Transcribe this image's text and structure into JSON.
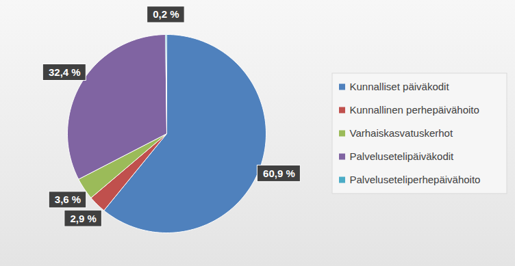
{
  "chart_data": {
    "type": "pie",
    "categories": [
      "Kunnalliset päiväkodit",
      "Kunnallinen perhepäivähoito",
      "Varhaiskasvatuskerhot",
      "Palvelusetelipäiväkodit",
      "Palveluseteliperhepäivähoito"
    ],
    "values": [
      60.9,
      2.9,
      3.6,
      32.4,
      0.2
    ],
    "value_labels": [
      "60,9 %",
      "2,9 %",
      "3,6 %",
      "32,4 %",
      "0,2 %"
    ],
    "colors": [
      "#4f81bd",
      "#c0504d",
      "#9bbb59",
      "#8064a2",
      "#4bacc6"
    ],
    "data_labels": true,
    "legend": "right"
  }
}
